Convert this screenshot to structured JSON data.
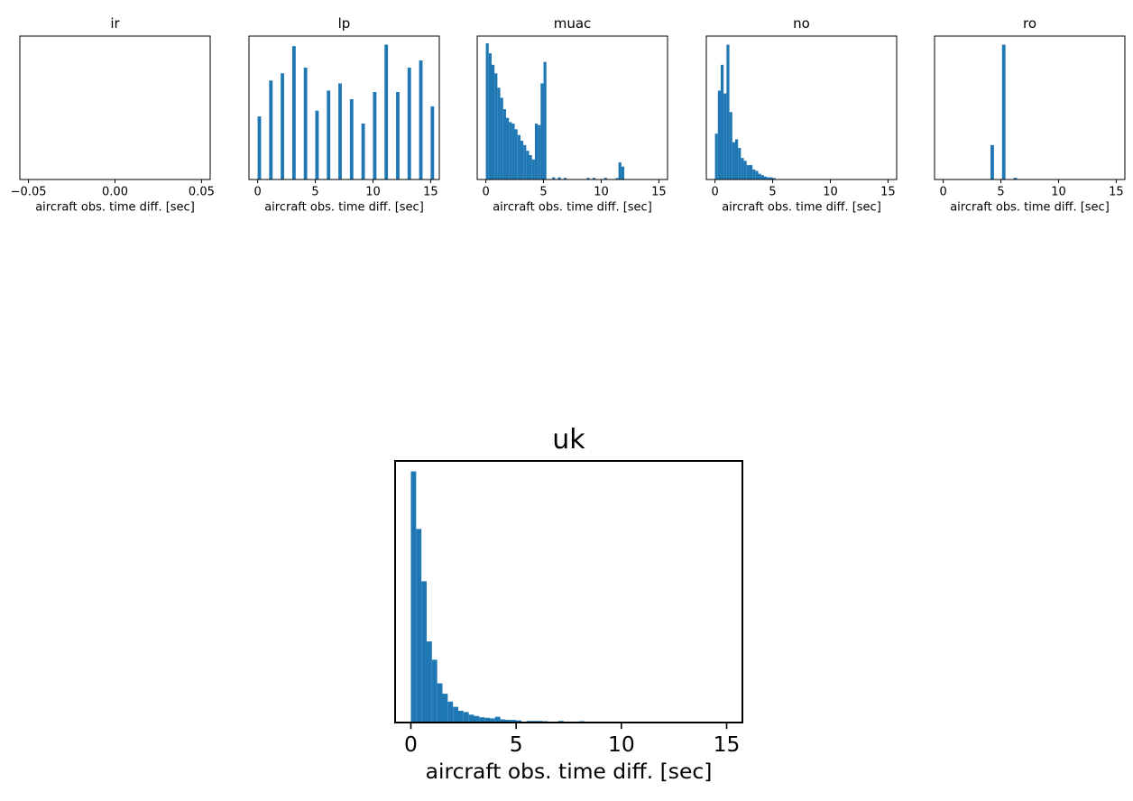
{
  "chart_data": [
    {
      "type": "bar",
      "title": "ir",
      "xlabel": "aircraft obs. time diff. [sec]",
      "ylabel": "",
      "xlim": [
        -0.055,
        0.055
      ],
      "xticks": [
        -0.05,
        0.0,
        0.05
      ],
      "xtick_labels": [
        "−0.05",
        "0.00",
        "0.05"
      ],
      "show_yaxis": false,
      "bin_width": 0.2,
      "bins": []
    },
    {
      "type": "bar",
      "title": "lp",
      "xlabel": "aircraft obs. time diff. [sec]",
      "ylabel": "",
      "xlim": [
        -0.75,
        15.75
      ],
      "xticks": [
        0,
        5,
        10,
        15
      ],
      "xtick_labels": [
        "0",
        "5",
        "10",
        "15"
      ],
      "show_yaxis": false,
      "bin_width": 0.3,
      "bins": [
        {
          "x": 0,
          "count": 44
        },
        {
          "x": 1,
          "count": 69
        },
        {
          "x": 2,
          "count": 74
        },
        {
          "x": 3,
          "count": 93
        },
        {
          "x": 4,
          "count": 78
        },
        {
          "x": 5,
          "count": 48
        },
        {
          "x": 6,
          "count": 62
        },
        {
          "x": 7,
          "count": 67
        },
        {
          "x": 8,
          "count": 56
        },
        {
          "x": 9,
          "count": 39
        },
        {
          "x": 10,
          "count": 61
        },
        {
          "x": 11,
          "count": 94
        },
        {
          "x": 12,
          "count": 61
        },
        {
          "x": 13,
          "count": 78
        },
        {
          "x": 14,
          "count": 83
        },
        {
          "x": 15,
          "count": 51
        }
      ]
    },
    {
      "type": "bar",
      "title": "muac",
      "xlabel": "aircraft obs. time diff. [sec]",
      "ylabel": "",
      "xlim": [
        -0.75,
        15.75
      ],
      "xticks": [
        0,
        5,
        10,
        15
      ],
      "xtick_labels": [
        "0",
        "5",
        "10",
        "15"
      ],
      "show_yaxis": false,
      "bin_width": 0.25,
      "bins": [
        {
          "x": 0.0,
          "count": 95
        },
        {
          "x": 0.25,
          "count": 88
        },
        {
          "x": 0.5,
          "count": 80
        },
        {
          "x": 0.75,
          "count": 74
        },
        {
          "x": 1.0,
          "count": 64
        },
        {
          "x": 1.25,
          "count": 57
        },
        {
          "x": 1.5,
          "count": 49
        },
        {
          "x": 1.75,
          "count": 43
        },
        {
          "x": 2.0,
          "count": 40
        },
        {
          "x": 2.25,
          "count": 39
        },
        {
          "x": 2.5,
          "count": 35
        },
        {
          "x": 2.75,
          "count": 31
        },
        {
          "x": 3.0,
          "count": 27
        },
        {
          "x": 3.25,
          "count": 24
        },
        {
          "x": 3.5,
          "count": 20
        },
        {
          "x": 3.75,
          "count": 17
        },
        {
          "x": 4.0,
          "count": 14
        },
        {
          "x": 4.25,
          "count": 39
        },
        {
          "x": 4.5,
          "count": 38
        },
        {
          "x": 4.75,
          "count": 67
        },
        {
          "x": 5.0,
          "count": 82
        },
        {
          "x": 5.75,
          "count": 1.5
        },
        {
          "x": 6.25,
          "count": 1.5
        },
        {
          "x": 6.75,
          "count": 1.2
        },
        {
          "x": 8.75,
          "count": 1.2
        },
        {
          "x": 9.25,
          "count": 1.2
        },
        {
          "x": 10.25,
          "count": 1.2
        },
        {
          "x": 11.25,
          "count": 1.0
        },
        {
          "x": 11.5,
          "count": 12
        },
        {
          "x": 11.75,
          "count": 9
        }
      ]
    },
    {
      "type": "bar",
      "title": "no",
      "xlabel": "aircraft obs. time diff. [sec]",
      "ylabel": "",
      "xlim": [
        -0.75,
        15.75
      ],
      "xticks": [
        0,
        5,
        10,
        15
      ],
      "xtick_labels": [
        "0",
        "5",
        "10",
        "15"
      ],
      "show_yaxis": false,
      "bin_width": 0.25,
      "bins": [
        {
          "x": 0.0,
          "count": 32
        },
        {
          "x": 0.25,
          "count": 62
        },
        {
          "x": 0.5,
          "count": 80
        },
        {
          "x": 0.75,
          "count": 60
        },
        {
          "x": 1.0,
          "count": 94
        },
        {
          "x": 1.25,
          "count": 47
        },
        {
          "x": 1.5,
          "count": 26
        },
        {
          "x": 1.75,
          "count": 28
        },
        {
          "x": 2.0,
          "count": 22
        },
        {
          "x": 2.25,
          "count": 15
        },
        {
          "x": 2.5,
          "count": 13
        },
        {
          "x": 2.75,
          "count": 10
        },
        {
          "x": 3.0,
          "count": 10
        },
        {
          "x": 3.25,
          "count": 7
        },
        {
          "x": 3.5,
          "count": 6
        },
        {
          "x": 3.75,
          "count": 4
        },
        {
          "x": 4.0,
          "count": 3
        },
        {
          "x": 4.25,
          "count": 2
        },
        {
          "x": 4.5,
          "count": 1.5
        },
        {
          "x": 4.75,
          "count": 1.5
        },
        {
          "x": 5.0,
          "count": 1
        }
      ]
    },
    {
      "type": "bar",
      "title": "ro",
      "xlabel": "aircraft obs. time diff. [sec]",
      "ylabel": "",
      "xlim": [
        -0.75,
        15.75
      ],
      "xticks": [
        0,
        5,
        10,
        15
      ],
      "xtick_labels": [
        "0",
        "5",
        "10",
        "15"
      ],
      "show_yaxis": false,
      "bin_width": 0.3,
      "bins": [
        {
          "x": 4.1,
          "count": 24
        },
        {
          "x": 5.1,
          "count": 94
        },
        {
          "x": 6.1,
          "count": 1.2
        }
      ]
    },
    {
      "type": "bar",
      "title": "uk",
      "xlabel": "aircraft obs. time diff. [sec]",
      "ylabel": "",
      "xlim": [
        -0.75,
        15.75
      ],
      "xticks": [
        0,
        5,
        10,
        15
      ],
      "xtick_labels": [
        "0",
        "5",
        "10",
        "15"
      ],
      "show_yaxis": false,
      "bin_width": 0.25,
      "bins": [
        {
          "x": 0.0,
          "count": 96
        },
        {
          "x": 0.25,
          "count": 74
        },
        {
          "x": 0.5,
          "count": 54
        },
        {
          "x": 0.75,
          "count": 31
        },
        {
          "x": 1.0,
          "count": 24
        },
        {
          "x": 1.25,
          "count": 15
        },
        {
          "x": 1.5,
          "count": 11
        },
        {
          "x": 1.75,
          "count": 8
        },
        {
          "x": 2.0,
          "count": 6
        },
        {
          "x": 2.25,
          "count": 4.5
        },
        {
          "x": 2.5,
          "count": 4
        },
        {
          "x": 2.75,
          "count": 3
        },
        {
          "x": 3.0,
          "count": 2.5
        },
        {
          "x": 3.25,
          "count": 2
        },
        {
          "x": 3.5,
          "count": 1.8
        },
        {
          "x": 3.75,
          "count": 1.6
        },
        {
          "x": 4.0,
          "count": 2.2
        },
        {
          "x": 4.25,
          "count": 1.2
        },
        {
          "x": 4.5,
          "count": 1
        },
        {
          "x": 4.75,
          "count": 1
        },
        {
          "x": 5.0,
          "count": 0.8
        },
        {
          "x": 5.5,
          "count": 0.6
        },
        {
          "x": 5.75,
          "count": 0.6
        },
        {
          "x": 6.0,
          "count": 0.6
        },
        {
          "x": 6.25,
          "count": 0.5
        },
        {
          "x": 7.0,
          "count": 0.6
        },
        {
          "x": 8.0,
          "count": 0.5
        }
      ]
    }
  ],
  "colors": {
    "bar": "#1f77b4",
    "axes": "#000000",
    "text": "#000000",
    "background": "#ffffff"
  }
}
